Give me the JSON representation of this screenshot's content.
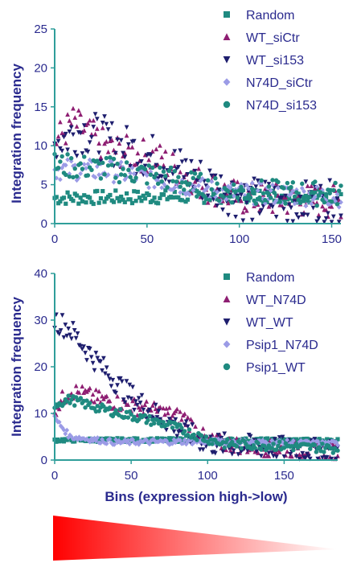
{
  "chart_data": [
    {
      "type": "scatter",
      "ylabel": "Integration frequency",
      "xlabel": "",
      "xlim": [
        0,
        155
      ],
      "ylim": [
        0,
        25
      ],
      "xticks": [
        "0",
        "50",
        "100",
        "150"
      ],
      "yticks": [
        "0",
        "5",
        "10",
        "15",
        "20",
        "25"
      ],
      "legend_position": "top-right",
      "series": [
        {
          "name": "Random",
          "marker": "square",
          "color": "#1f8a80",
          "anchors": [
            [
              0,
              3.3
            ],
            [
              50,
              3.4
            ],
            [
              100,
              3.6
            ],
            [
              155,
              3.6
            ]
          ],
          "amp": 0.9
        },
        {
          "name": "WT_siCtr",
          "marker": "triangle-up",
          "color": "#8e1e72",
          "anchors": [
            [
              0,
              10.5
            ],
            [
              10,
              13
            ],
            [
              30,
              9.5
            ],
            [
              55,
              8.5
            ],
            [
              80,
              5
            ],
            [
              100,
              3.3
            ],
            [
              155,
              2.8
            ]
          ],
          "amp": 2.2
        },
        {
          "name": "WT_si153",
          "marker": "triangle-down",
          "color": "#1e1e6e",
          "anchors": [
            [
              0,
              10.5
            ],
            [
              15,
              12
            ],
            [
              35,
              10
            ],
            [
              60,
              8
            ],
            [
              85,
              5
            ],
            [
              105,
              3
            ],
            [
              155,
              2.5
            ]
          ],
          "amp": 3.0
        },
        {
          "name": "N74D_siCtr",
          "marker": "diamond",
          "color": "#9b9be6",
          "anchors": [
            [
              0,
              7
            ],
            [
              30,
              6.8
            ],
            [
              60,
              5.5
            ],
            [
              90,
              4
            ],
            [
              155,
              3.5
            ]
          ],
          "amp": 1.4
        },
        {
          "name": "N74D_si153",
          "marker": "circle",
          "color": "#1f8a80",
          "anchors": [
            [
              0,
              7.5
            ],
            [
              30,
              7
            ],
            [
              60,
              6
            ],
            [
              90,
              4.2
            ],
            [
              155,
              3.8
            ]
          ],
          "amp": 1.6
        }
      ]
    },
    {
      "type": "scatter",
      "ylabel": "Integration frequency",
      "xlabel": "Bins (expression high->low)",
      "xlim": [
        0,
        185
      ],
      "ylim": [
        0,
        40
      ],
      "xticks": [
        "0",
        "50",
        "100",
        "150"
      ],
      "yticks": [
        "0",
        "10",
        "20",
        "30",
        "40"
      ],
      "legend_position": "top-right",
      "series": [
        {
          "name": "Random",
          "marker": "square",
          "color": "#1f8a80",
          "anchors": [
            [
              0,
              4.3
            ],
            [
              100,
              4.3
            ],
            [
              185,
              4.2
            ]
          ],
          "amp": 0.4
        },
        {
          "name": "WT_N74D",
          "marker": "triangle-up",
          "color": "#8e1e72",
          "anchors": [
            [
              0,
              11
            ],
            [
              10,
              15
            ],
            [
              30,
              13
            ],
            [
              60,
              11
            ],
            [
              85,
              9
            ],
            [
              100,
              4
            ],
            [
              140,
              2.5
            ],
            [
              185,
              2
            ]
          ],
          "amp": 1.8
        },
        {
          "name": "WT_WT",
          "marker": "triangle-down",
          "color": "#1e1e6e",
          "anchors": [
            [
              0,
              30
            ],
            [
              10,
              28
            ],
            [
              25,
              22
            ],
            [
              45,
              15
            ],
            [
              65,
              10
            ],
            [
              85,
              6
            ],
            [
              100,
              3.5
            ],
            [
              185,
              1.8
            ]
          ],
          "amp": 2.5
        },
        {
          "name": "Psip1_N74D",
          "marker": "diamond",
          "color": "#9b9be6",
          "anchors": [
            [
              0,
              9
            ],
            [
              10,
              5
            ],
            [
              40,
              3.8
            ],
            [
              100,
              4
            ],
            [
              185,
              3.5
            ]
          ],
          "amp": 0.6
        },
        {
          "name": "Psip1_WT",
          "marker": "circle",
          "color": "#1f8a80",
          "anchors": [
            [
              0,
              12
            ],
            [
              10,
              13
            ],
            [
              30,
              11
            ],
            [
              50,
              9.5
            ],
            [
              75,
              7.5
            ],
            [
              95,
              5
            ],
            [
              110,
              3.5
            ],
            [
              185,
              2.5
            ]
          ],
          "amp": 1.0
        }
      ]
    }
  ],
  "gradient_bar": {
    "color_start": "#ff0000",
    "color_end": "#ffffff"
  }
}
